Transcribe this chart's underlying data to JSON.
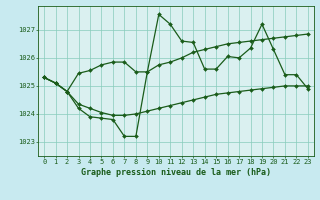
{
  "background_color": "#c8eaf0",
  "plot_bg_color": "#daf0f0",
  "grid_color": "#88ccbb",
  "line_color": "#1a5c1a",
  "marker_color": "#1a5c1a",
  "title": "Graphe pression niveau de la mer (hPa)",
  "xlim": [
    -0.5,
    23.5
  ],
  "ylim": [
    1022.5,
    1027.85
  ],
  "yticks": [
    1023,
    1024,
    1025,
    1026,
    1027
  ],
  "xticks": [
    0,
    1,
    2,
    3,
    4,
    5,
    6,
    7,
    8,
    9,
    10,
    11,
    12,
    13,
    14,
    15,
    16,
    17,
    18,
    19,
    20,
    21,
    22,
    23
  ],
  "series1_x": [
    0,
    1,
    2,
    3,
    4,
    5,
    6,
    7,
    8,
    9,
    10,
    11,
    12,
    13,
    14,
    15,
    16,
    17,
    18,
    19,
    20,
    21,
    22,
    23
  ],
  "series1_y": [
    1025.3,
    1025.1,
    1024.8,
    1024.2,
    1023.9,
    1023.85,
    1023.8,
    1023.2,
    1023.2,
    1025.5,
    1027.55,
    1027.2,
    1026.6,
    1026.55,
    1025.6,
    1025.6,
    1026.05,
    1026.0,
    1026.35,
    1027.2,
    1026.3,
    1025.4,
    1025.4,
    1024.9
  ],
  "series2_x": [
    0,
    1,
    2,
    3,
    4,
    5,
    6,
    7,
    8,
    9,
    10,
    11,
    12,
    13,
    14,
    15,
    16,
    17,
    18,
    19,
    20,
    21,
    22,
    23
  ],
  "series2_y": [
    1025.3,
    1025.1,
    1024.8,
    1025.45,
    1025.55,
    1025.75,
    1025.85,
    1025.85,
    1025.5,
    1025.5,
    1025.75,
    1025.85,
    1026.0,
    1026.2,
    1026.3,
    1026.4,
    1026.5,
    1026.55,
    1026.6,
    1026.65,
    1026.7,
    1026.75,
    1026.8,
    1026.85
  ],
  "series3_x": [
    0,
    1,
    2,
    3,
    4,
    5,
    6,
    7,
    8,
    9,
    10,
    11,
    12,
    13,
    14,
    15,
    16,
    17,
    18,
    19,
    20,
    21,
    22,
    23
  ],
  "series3_y": [
    1025.3,
    1025.1,
    1024.8,
    1024.35,
    1024.2,
    1024.05,
    1023.95,
    1023.95,
    1024.0,
    1024.1,
    1024.2,
    1024.3,
    1024.4,
    1024.5,
    1024.6,
    1024.7,
    1024.75,
    1024.8,
    1024.85,
    1024.9,
    1024.95,
    1025.0,
    1025.0,
    1025.0
  ],
  "title_fontsize": 6,
  "tick_fontsize": 5,
  "linewidth": 0.9,
  "markersize": 2.0
}
